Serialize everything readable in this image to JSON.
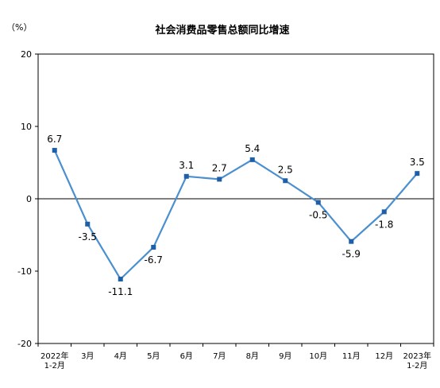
{
  "chart_data": {
    "type": "line",
    "title": "社会消费品零售总额同比增速",
    "ylabel": "（%）",
    "xlabel": "",
    "categories": [
      [
        "2022年",
        "1-2月"
      ],
      [
        "3月"
      ],
      [
        "4月"
      ],
      [
        "5月"
      ],
      [
        "6月"
      ],
      [
        "7月"
      ],
      [
        "8月"
      ],
      [
        "9月"
      ],
      [
        "10月"
      ],
      [
        "11月"
      ],
      [
        "12月"
      ],
      [
        "2023年",
        "1-2月"
      ]
    ],
    "values": [
      6.7,
      -3.5,
      -11.1,
      -6.7,
      3.1,
      2.7,
      5.4,
      2.5,
      -0.5,
      -5.9,
      -1.8,
      3.5
    ],
    "data_labels": [
      "6.7",
      "-3.5",
      "-11.1",
      "-6.7",
      "3.1",
      "2.7",
      "5.4",
      "2.5",
      "-0.5",
      "-5.9",
      "-1.8",
      "3.5"
    ],
    "label_positions": [
      "above",
      "below",
      "below",
      "below",
      "above",
      "above",
      "above",
      "above",
      "below",
      "below",
      "below",
      "above"
    ],
    "yticks": [
      20,
      10,
      0,
      -10,
      -20
    ],
    "ytick_labels": [
      "20",
      "10",
      "0",
      "-10",
      "-20"
    ],
    "ylim": [
      -20,
      20
    ],
    "grid": false,
    "legend": "none",
    "colors": {
      "line": "#4a8fcf",
      "marker": "#1f5fa8",
      "axis": "#000000",
      "zero_line": "#000000",
      "text": "#000000"
    }
  }
}
